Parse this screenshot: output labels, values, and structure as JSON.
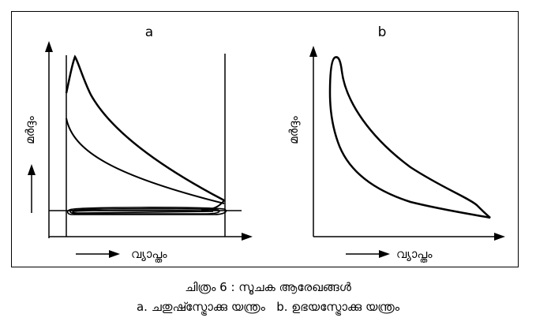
{
  "panels": {
    "a": {
      "label": "a",
      "y_axis_label": "മർദ്ദം",
      "x_axis_label": "വ്യാപ്തം"
    },
    "b": {
      "label": "b",
      "y_axis_label": "മർദ്ദം",
      "x_axis_label": "വ്യാപ്തം"
    }
  },
  "caption": {
    "title": "ചിത്രം 6 : സൂചക ആരേഖങ്ങൾ",
    "a_marker": "a.",
    "a_text": "ചതുഷ്സ്ട്രോക്കു യന്ത്രം",
    "b_marker": "b.",
    "b_text": "ഉഭയസ്ട്രോക്കു യന്ത്രം"
  },
  "colors": {
    "ink": "#000000",
    "background": "#ffffff"
  }
}
